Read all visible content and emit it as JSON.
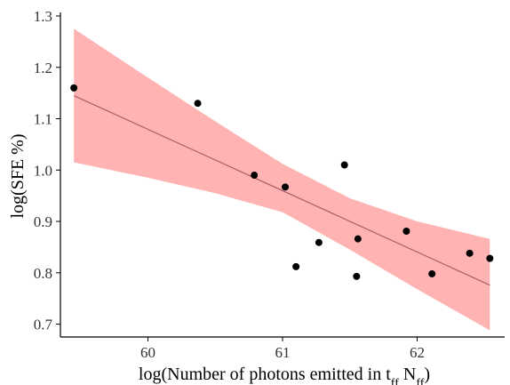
{
  "chart_data": {
    "type": "scatter",
    "title": "",
    "xlabel_main": "log(Number of photons emitted in t",
    "xlabel_sub1": "ff",
    "xlabel_mid": " N",
    "xlabel_sub2": "ff",
    "xlabel_end": ")",
    "ylabel": "log(SFE %)",
    "xlim": [
      59.35,
      62.65
    ],
    "ylim": [
      0.675,
      1.3
    ],
    "x_ticks": [
      60,
      61,
      62
    ],
    "x_tick_labels": [
      "60",
      "61",
      "62"
    ],
    "y_ticks": [
      0.7,
      0.8,
      0.9,
      1.0,
      1.1,
      1.2,
      1.3
    ],
    "y_tick_labels": [
      "0.7",
      "0.8",
      "0.9",
      "1.0",
      "1.1",
      "1.2",
      "1.3"
    ],
    "grid": false,
    "points": [
      {
        "x": 59.45,
        "y": 1.16
      },
      {
        "x": 60.37,
        "y": 1.13
      },
      {
        "x": 60.79,
        "y": 0.99
      },
      {
        "x": 61.02,
        "y": 0.967
      },
      {
        "x": 61.1,
        "y": 0.812
      },
      {
        "x": 61.27,
        "y": 0.859
      },
      {
        "x": 61.46,
        "y": 1.01
      },
      {
        "x": 61.55,
        "y": 0.793
      },
      {
        "x": 61.56,
        "y": 0.866
      },
      {
        "x": 61.92,
        "y": 0.881
      },
      {
        "x": 62.11,
        "y": 0.798
      },
      {
        "x": 62.39,
        "y": 0.838
      },
      {
        "x": 62.54,
        "y": 0.828
      }
    ],
    "fit_line": {
      "x": [
        59.45,
        62.54
      ],
      "y": [
        1.145,
        0.776
      ]
    },
    "confidence_band": {
      "x": [
        59.45,
        60.0,
        60.5,
        61.0,
        61.5,
        62.0,
        62.54
      ],
      "upper": [
        1.275,
        1.18,
        1.095,
        1.012,
        0.945,
        0.9,
        0.866
      ],
      "lower": [
        1.015,
        0.985,
        0.955,
        0.918,
        0.845,
        0.768,
        0.688
      ]
    },
    "colors": {
      "points": "#000000",
      "fit_line": "#b05c6a",
      "band": "#ffb3b3"
    }
  }
}
